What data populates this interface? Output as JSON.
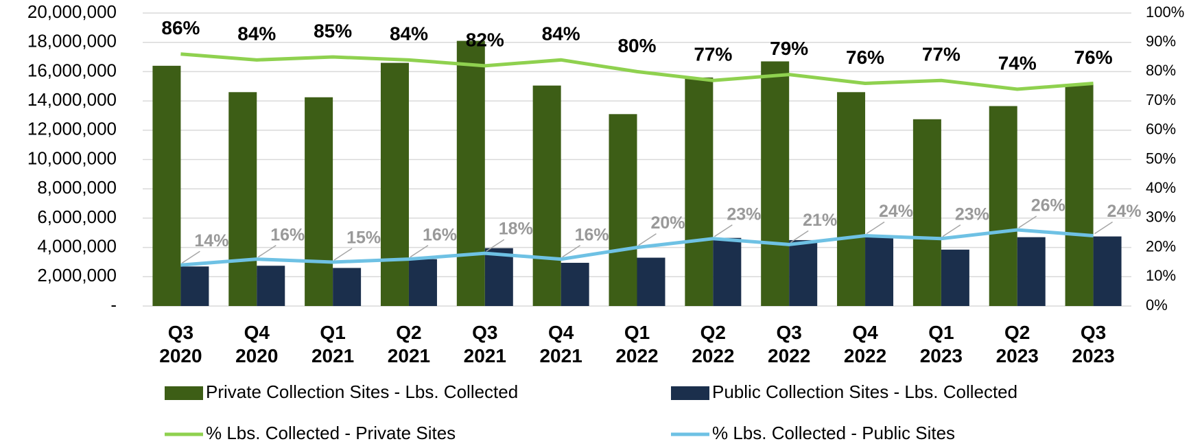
{
  "chart_data": {
    "type": "bar_line",
    "categories": [
      "Q3 2020",
      "Q4 2020",
      "Q1 2021",
      "Q2 2021",
      "Q3 2021",
      "Q4 2021",
      "Q1 2022",
      "Q2 2022",
      "Q3 2022",
      "Q4 2022",
      "Q1 2023",
      "Q2 2023",
      "Q3 2023"
    ],
    "series": [
      {
        "name": "Private Collection Sites - Lbs. Collected",
        "type": "bar",
        "color": "#3d5e16",
        "values": [
          16400000,
          14600000,
          14250000,
          16600000,
          18100000,
          15050000,
          13100000,
          15600000,
          16700000,
          14600000,
          12750000,
          13650000,
          15100000
        ]
      },
      {
        "name": "Public Collection Sites - Lbs. Collected",
        "type": "bar",
        "color": "#1b2f4c",
        "values": [
          2700000,
          2750000,
          2600000,
          3200000,
          3950000,
          2950000,
          3300000,
          4650000,
          4500000,
          4700000,
          3850000,
          4700000,
          4750000
        ]
      },
      {
        "name": "% Lbs. Collected - Private Sites",
        "type": "line",
        "axis": "y2",
        "color": "#8fd14f",
        "values": [
          86,
          84,
          85,
          84,
          82,
          84,
          80,
          77,
          79,
          76,
          77,
          74,
          76
        ],
        "value_labels": [
          "86%",
          "84%",
          "85%",
          "84%",
          "82%",
          "84%",
          "80%",
          "77%",
          "79%",
          "76%",
          "77%",
          "74%",
          "76%"
        ]
      },
      {
        "name": "% Lbs. Collected - Public Sites",
        "type": "line",
        "axis": "y2",
        "color": "#6ec1e4",
        "values": [
          14,
          16,
          15,
          16,
          18,
          16,
          20,
          23,
          21,
          24,
          23,
          26,
          24
        ],
        "value_labels": [
          "14%",
          "16%",
          "15%",
          "16%",
          "18%",
          "16%",
          "20%",
          "23%",
          "21%",
          "24%",
          "23%",
          "26%",
          "24%"
        ]
      }
    ],
    "ylim": [
      0,
      20000000
    ],
    "yticks": [
      {
        "value": 0,
        "label": "-"
      },
      {
        "value": 2000000,
        "label": "2,000,000"
      },
      {
        "value": 4000000,
        "label": "4,000,000"
      },
      {
        "value": 6000000,
        "label": "6,000,000"
      },
      {
        "value": 8000000,
        "label": "8,000,000"
      },
      {
        "value": 10000000,
        "label": "10,000,000"
      },
      {
        "value": 12000000,
        "label": "12,000,000"
      },
      {
        "value": 14000000,
        "label": "14,000,000"
      },
      {
        "value": 16000000,
        "label": "16,000,000"
      },
      {
        "value": 18000000,
        "label": "18,000,000"
      },
      {
        "value": 20000000,
        "label": "20,000,000"
      }
    ],
    "y2lim": [
      0,
      100
    ],
    "y2ticks": [
      {
        "value": 0,
        "label": "0%"
      },
      {
        "value": 10,
        "label": "10%"
      },
      {
        "value": 20,
        "label": "20%"
      },
      {
        "value": 30,
        "label": "30%"
      },
      {
        "value": 40,
        "label": "40%"
      },
      {
        "value": 50,
        "label": "50%"
      },
      {
        "value": 60,
        "label": "60%"
      },
      {
        "value": 70,
        "label": "70%"
      },
      {
        "value": 80,
        "label": "80%"
      },
      {
        "value": 90,
        "label": "90%"
      },
      {
        "value": 100,
        "label": "100%"
      }
    ],
    "grid": true,
    "legend": "bottom"
  }
}
